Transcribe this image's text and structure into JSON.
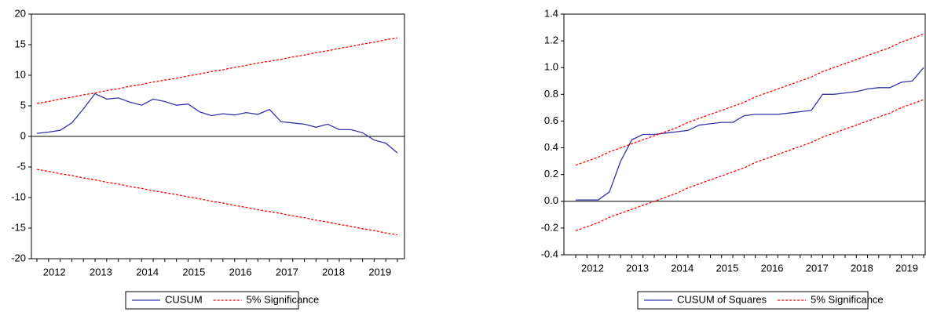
{
  "chart_data": [
    {
      "type": "line",
      "categories": [
        null,
        "2012",
        null,
        null,
        null,
        "2013",
        null,
        null,
        null,
        "2014",
        null,
        null,
        null,
        "2015",
        null,
        null,
        null,
        "2016",
        null,
        null,
        null,
        "2017",
        null,
        null,
        null,
        "2018",
        null,
        null,
        null,
        "2019",
        null,
        null
      ],
      "series": [
        {
          "name": "CUSUM",
          "color": "#3333aa",
          "values": [
            0.5,
            0.7,
            1.0,
            2.2,
            4.5,
            7.0,
            6.1,
            6.3,
            5.6,
            5.1,
            6.1,
            5.7,
            5.1,
            5.3,
            4.0,
            3.4,
            3.7,
            3.5,
            3.9,
            3.6,
            4.4,
            2.4,
            2.2,
            2.0,
            1.5,
            2.0,
            1.1,
            1.1,
            0.6,
            -0.6,
            -1.1,
            -2.7
          ]
        },
        {
          "name": "5% Significance",
          "color": "#ff0000",
          "dashed": true,
          "upper": [
            5.4,
            5.7,
            6.1,
            6.4,
            6.8,
            7.1,
            7.5,
            7.8,
            8.2,
            8.5,
            8.9,
            9.2,
            9.5,
            9.9,
            10.2,
            10.6,
            10.9,
            11.3,
            11.6,
            12.0,
            12.3,
            12.6,
            13.0,
            13.3,
            13.7,
            14.0,
            14.4,
            14.7,
            15.1,
            15.4,
            15.8,
            16.1
          ],
          "lower": [
            -5.4,
            -5.7,
            -6.1,
            -6.4,
            -6.8,
            -7.1,
            -7.5,
            -7.8,
            -8.2,
            -8.5,
            -8.9,
            -9.2,
            -9.5,
            -9.9,
            -10.2,
            -10.6,
            -10.9,
            -11.3,
            -11.6,
            -12.0,
            -12.3,
            -12.6,
            -13.0,
            -13.3,
            -13.7,
            -14.0,
            -14.4,
            -14.7,
            -15.1,
            -15.4,
            -15.8,
            -16.1
          ]
        }
      ],
      "ylim": [
        -20,
        20
      ],
      "yticks": [
        -20,
        -15,
        -10,
        -5,
        0,
        5,
        10,
        15,
        20
      ],
      "zero_line": true,
      "legend": "bottom"
    },
    {
      "type": "line",
      "categories": [
        null,
        "2012",
        null,
        null,
        null,
        "2013",
        null,
        null,
        null,
        "2014",
        null,
        null,
        null,
        "2015",
        null,
        null,
        null,
        "2016",
        null,
        null,
        null,
        "2017",
        null,
        null,
        null,
        "2018",
        null,
        null,
        null,
        "2019",
        null,
        null
      ],
      "series": [
        {
          "name": "CUSUM of Squares",
          "color": "#3333aa",
          "values": [
            0.01,
            0.01,
            0.01,
            0.07,
            0.3,
            0.46,
            0.5,
            0.5,
            0.51,
            0.52,
            0.53,
            0.57,
            0.58,
            0.59,
            0.59,
            0.64,
            0.65,
            0.65,
            0.65,
            0.66,
            0.67,
            0.68,
            0.8,
            0.8,
            0.81,
            0.82,
            0.84,
            0.85,
            0.85,
            0.89,
            0.9,
            1.0
          ]
        },
        {
          "name": "5% Significance",
          "color": "#ff0000",
          "dashed": true,
          "upper": [
            0.27,
            0.3,
            0.33,
            0.37,
            0.4,
            0.43,
            0.46,
            0.49,
            0.52,
            0.55,
            0.59,
            0.62,
            0.65,
            0.68,
            0.71,
            0.74,
            0.78,
            0.81,
            0.84,
            0.87,
            0.9,
            0.93,
            0.97,
            1.0,
            1.03,
            1.06,
            1.09,
            1.12,
            1.15,
            1.19,
            1.22,
            1.25
          ],
          "lower": [
            -0.22,
            -0.19,
            -0.16,
            -0.12,
            -0.09,
            -0.06,
            -0.03,
            0.0,
            0.03,
            0.06,
            0.1,
            0.13,
            0.16,
            0.19,
            0.22,
            0.25,
            0.29,
            0.32,
            0.35,
            0.38,
            0.41,
            0.44,
            0.48,
            0.51,
            0.54,
            0.57,
            0.6,
            0.63,
            0.66,
            0.7,
            0.73,
            0.76
          ]
        }
      ],
      "ylim": [
        -0.4,
        1.4
      ],
      "yticks": [
        -0.4,
        -0.2,
        {
          "value": 0,
          "label": "0.0"
        },
        0.2,
        0.4,
        0.6,
        0.8,
        {
          "value": 1,
          "label": "1.0"
        },
        1.2,
        1.4
      ],
      "zero_line": true,
      "legend": "bottom"
    }
  ]
}
